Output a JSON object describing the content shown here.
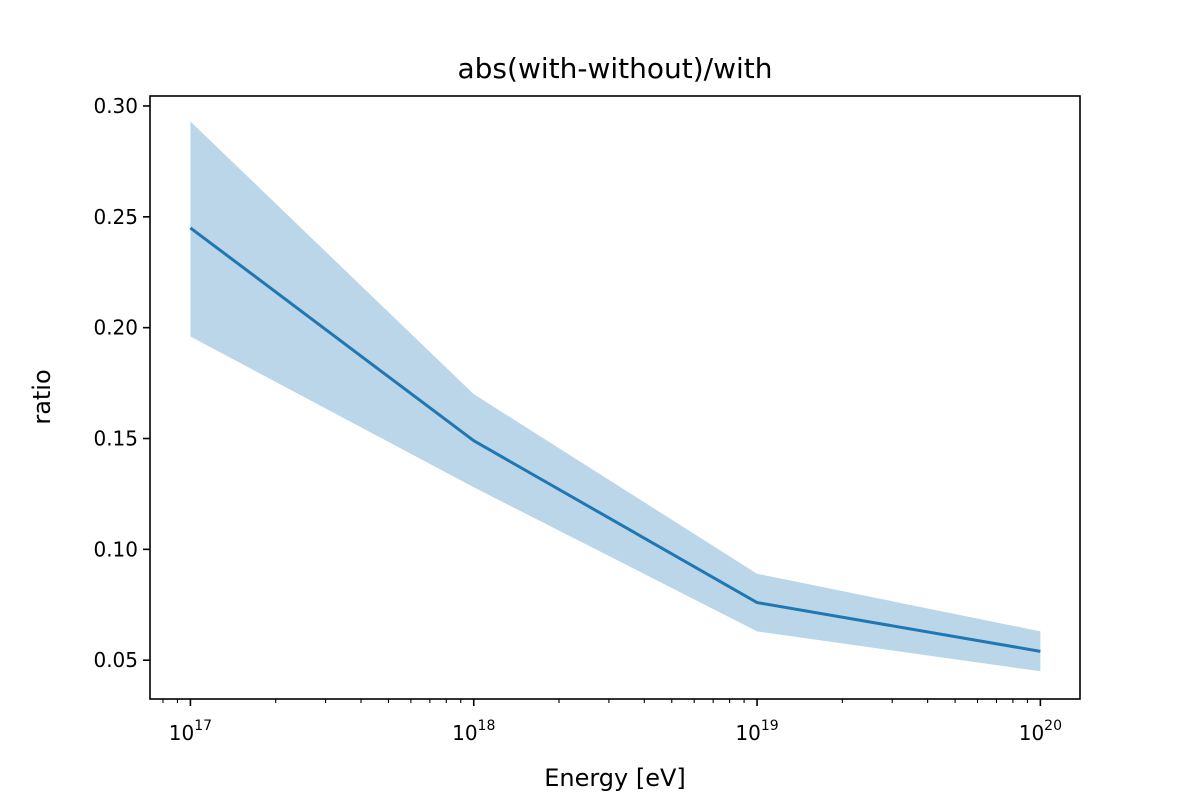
{
  "chart_data": {
    "type": "line",
    "title": "abs(with-without)/with",
    "xlabel": "Energy [eV]",
    "ylabel": "ratio",
    "x_scale": "log",
    "x": [
      1e+17,
      1e+18,
      1e+19,
      1e+20
    ],
    "xlim": [
      7.2e+16,
      1.38e+20
    ],
    "ylim": [
      0.0325,
      0.3045
    ],
    "x_ticks": [
      {
        "value": 1e+17,
        "base": "10",
        "exp": "17"
      },
      {
        "value": 1e+18,
        "base": "10",
        "exp": "18"
      },
      {
        "value": 1e+19,
        "base": "10",
        "exp": "19"
      },
      {
        "value": 1e+20,
        "base": "10",
        "exp": "20"
      }
    ],
    "y_ticks": [
      {
        "value": 0.05,
        "label": "0.05"
      },
      {
        "value": 0.1,
        "label": "0.10"
      },
      {
        "value": 0.15,
        "label": "0.15"
      },
      {
        "value": 0.2,
        "label": "0.20"
      },
      {
        "value": 0.25,
        "label": "0.25"
      },
      {
        "value": 0.3,
        "label": "0.30"
      }
    ],
    "series": [
      {
        "y": [
          0.245,
          0.149,
          0.076,
          0.054
        ],
        "color": "#1f77b4"
      }
    ],
    "band": {
      "lower": [
        0.196,
        0.128,
        0.063,
        0.045
      ],
      "upper": [
        0.293,
        0.17,
        0.089,
        0.063
      ],
      "color": "#1f77b4",
      "opacity": 0.3
    },
    "grid": false,
    "legend": "none"
  }
}
